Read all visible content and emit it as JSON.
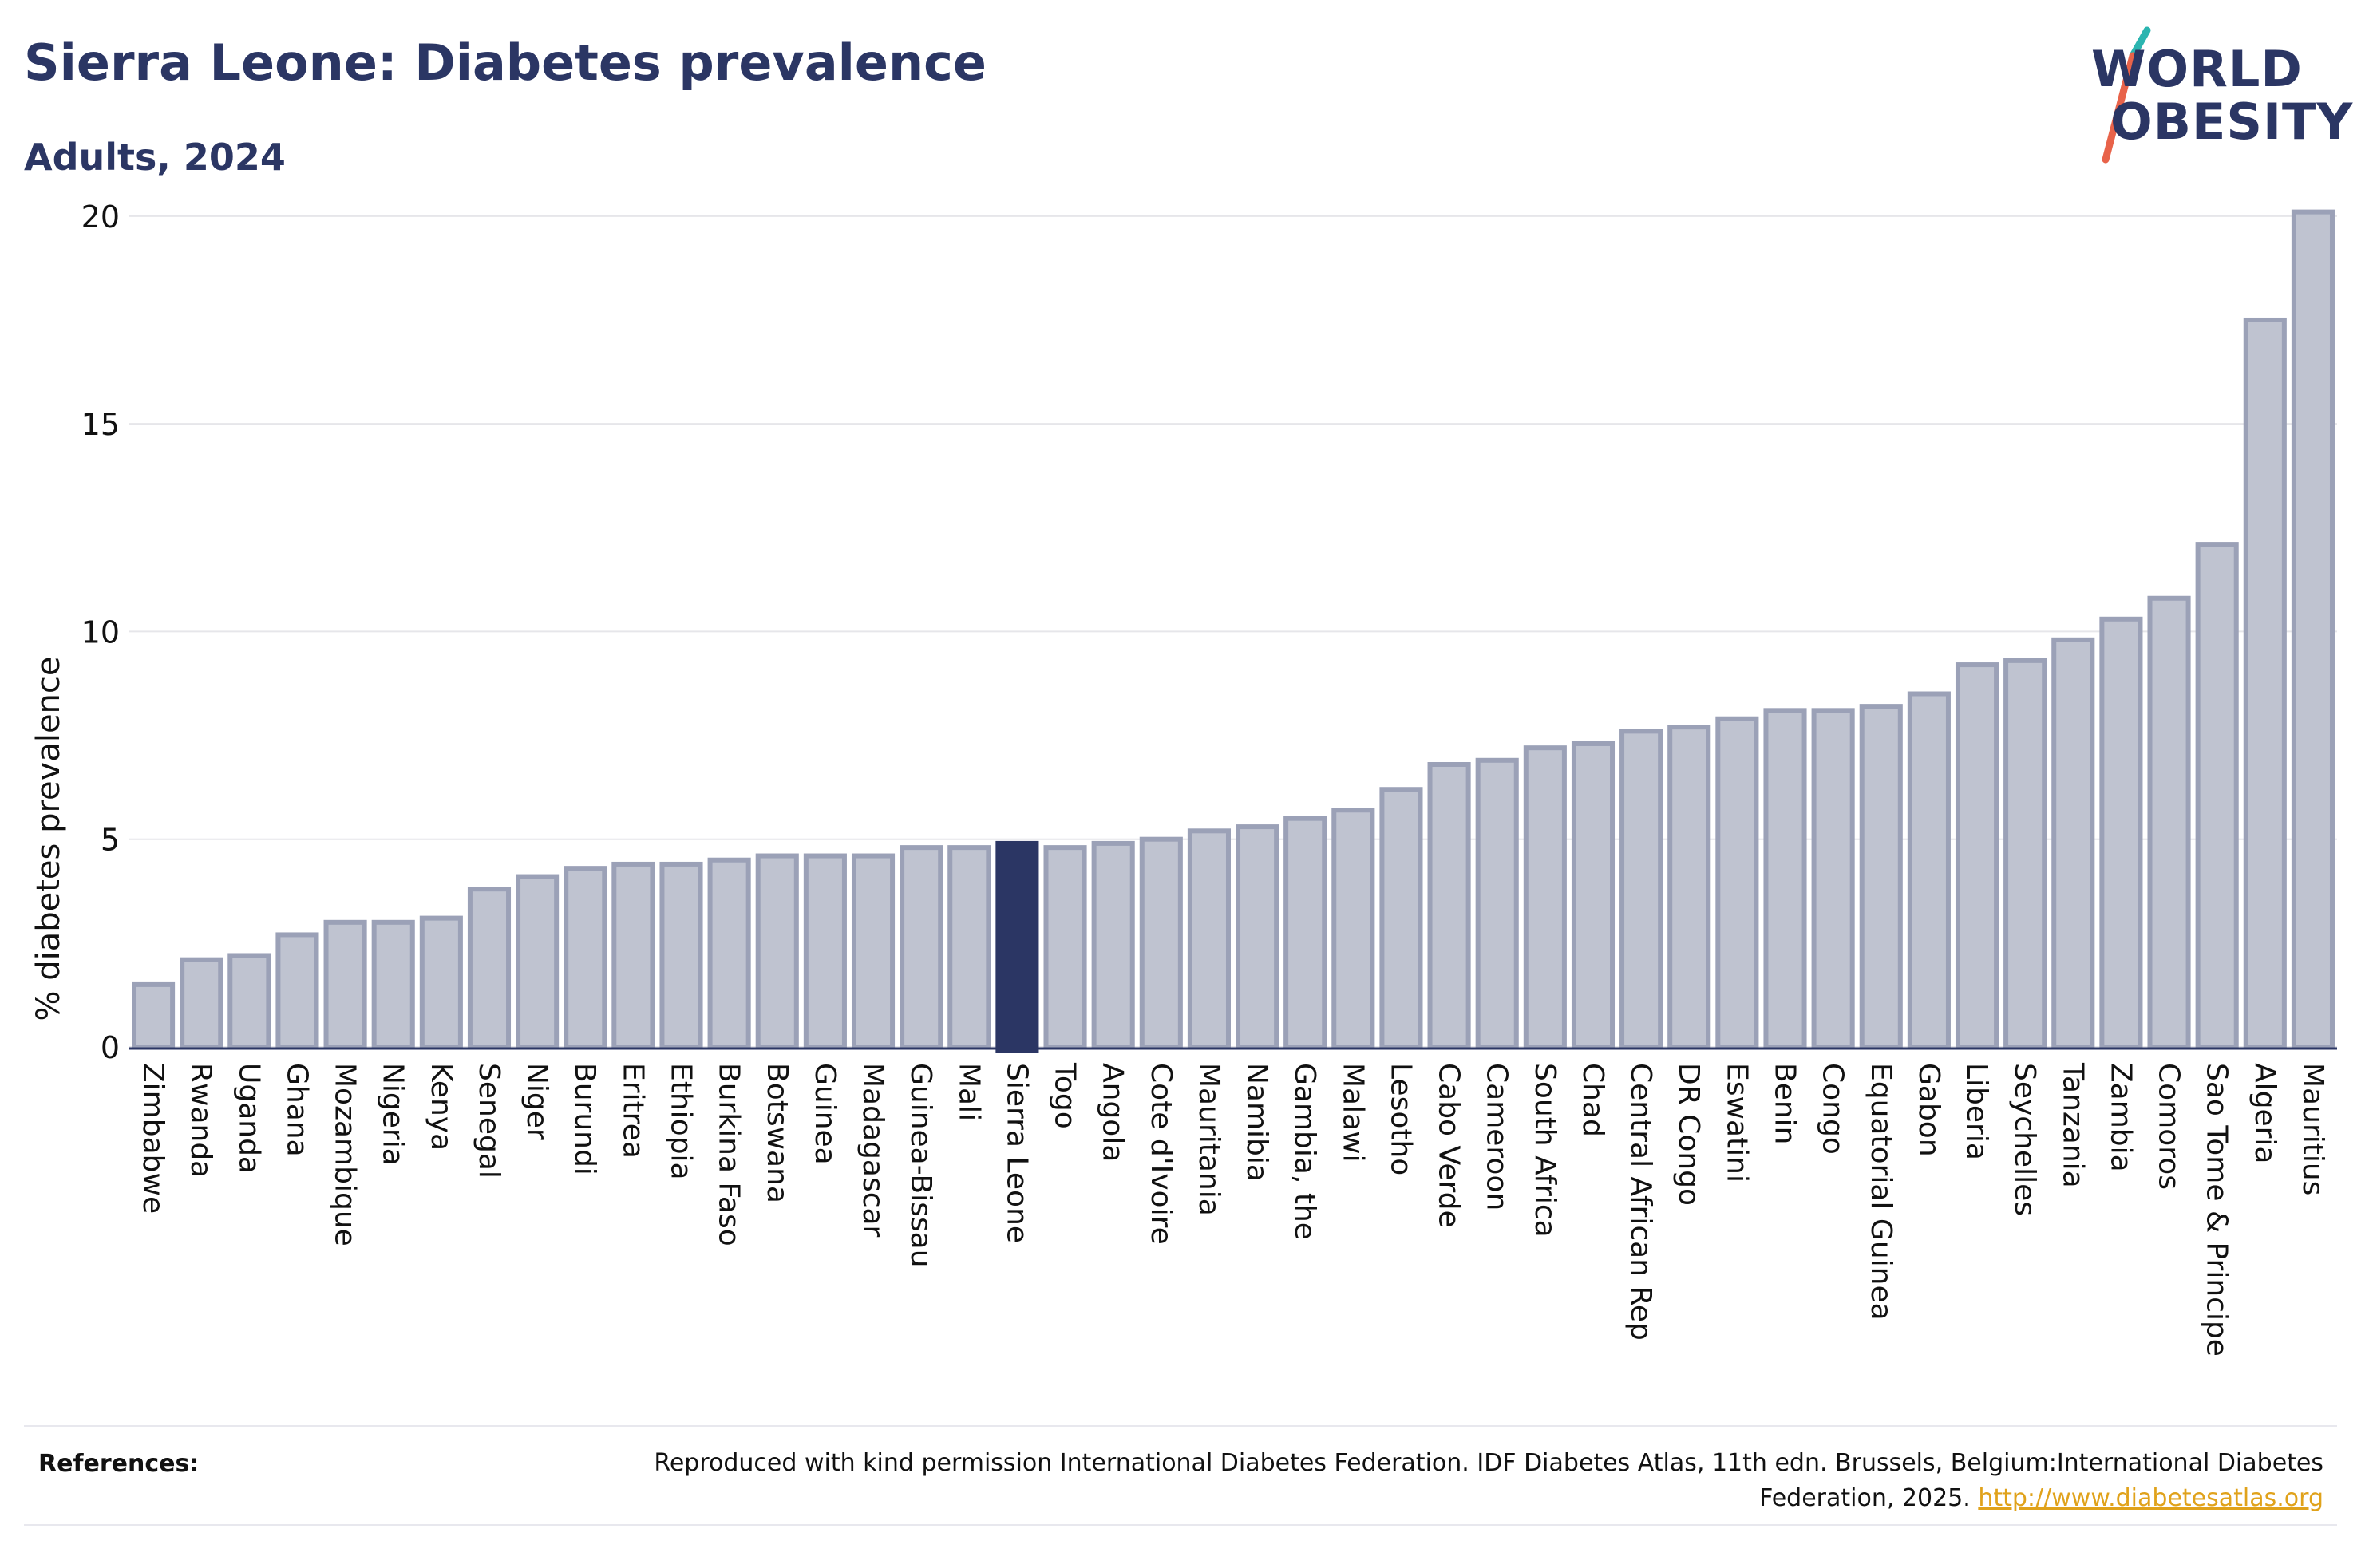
{
  "header": {
    "title": "Sierra Leone: Diabetes prevalence",
    "subtitle": "Adults, 2024"
  },
  "logo": {
    "line1": "WORLD",
    "line2": "OBESITY",
    "colors": {
      "text": "#2b3664",
      "slash_top": "#2bb5b0",
      "slash_bottom": "#e8634a"
    }
  },
  "colors": {
    "bar_fill": "#bfc3d0",
    "bar_stroke": "#9ba1b7",
    "highlight": "#2b3664",
    "grid": "#e6e6ea",
    "axis": "#2b3664"
  },
  "chart_data": {
    "type": "bar",
    "title": "Sierra Leone: Diabetes prevalence",
    "subtitle": "Adults, 2024",
    "xlabel": "",
    "ylabel": "% diabetes prevalence",
    "ylim": [
      0,
      20.4
    ],
    "yticks": [
      0,
      5,
      10,
      15,
      20
    ],
    "grid": true,
    "highlight": "Sierra Leone",
    "categories": [
      "Zimbabwe",
      "Rwanda",
      "Uganda",
      "Ghana",
      "Mozambique",
      "Nigeria",
      "Kenya",
      "Senegal",
      "Niger",
      "Burundi",
      "Eritrea",
      "Ethiopia",
      "Burkina Faso",
      "Botswana",
      "Guinea",
      "Madagascar",
      "Guinea-Bissau",
      "Mali",
      "Sierra Leone",
      "Togo",
      "Angola",
      "Cote d'Ivoire",
      "Mauritania",
      "Namibia",
      "Gambia, the",
      "Malawi",
      "Lesotho",
      "Cabo Verde",
      "Cameroon",
      "South Africa",
      "Chad",
      "Central African Rep",
      "DR Congo",
      "Eswatini",
      "Benin",
      "Congo",
      "Equatorial Guinea",
      "Gabon",
      "Liberia",
      "Seychelles",
      "Tanzania",
      "Zambia",
      "Comoros",
      "Sao Tome & Principe",
      "Algeria",
      "Mauritius"
    ],
    "values": [
      1.5,
      2.1,
      2.2,
      2.7,
      3.0,
      3.0,
      3.1,
      3.8,
      4.1,
      4.3,
      4.4,
      4.4,
      4.5,
      4.6,
      4.6,
      4.6,
      4.8,
      4.8,
      4.9,
      4.8,
      4.9,
      5.0,
      5.2,
      5.3,
      5.5,
      5.7,
      6.2,
      6.8,
      6.9,
      7.2,
      7.3,
      7.6,
      7.7,
      7.9,
      8.1,
      8.1,
      8.2,
      8.5,
      9.2,
      9.3,
      9.8,
      10.3,
      10.8,
      12.1,
      17.5,
      20.1
    ]
  },
  "references": {
    "label": "References:",
    "text": "Reproduced with kind permission International Diabetes Federation. IDF Diabetes Atlas, 11th edn. Brussels, Belgium:International Diabetes Federation, 2025.",
    "link": "http://www.diabetesatlas.org"
  }
}
